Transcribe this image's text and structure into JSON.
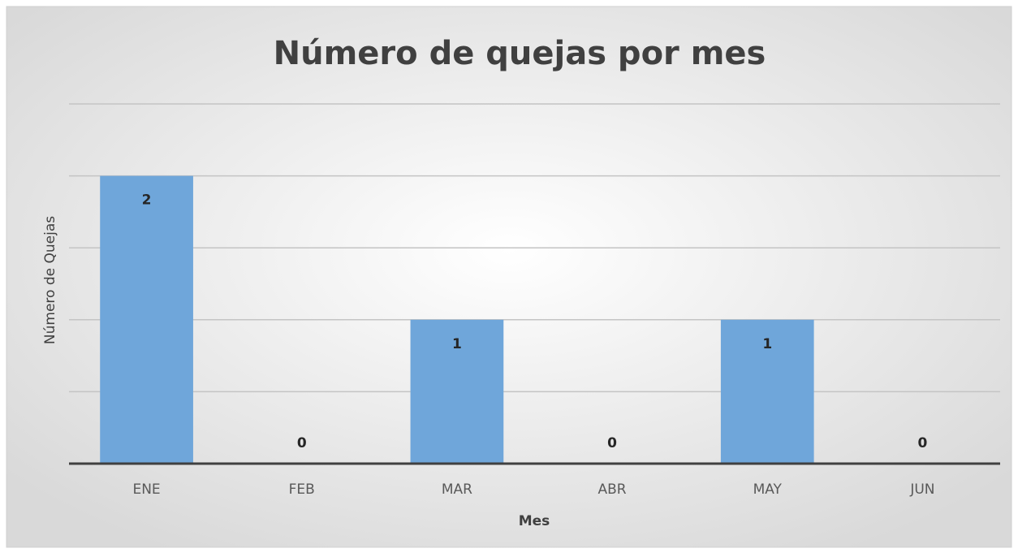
{
  "chart_data": {
    "type": "bar",
    "title": "Número de quejas por mes",
    "x_label": "Mes",
    "y_label": "Número de Quejas",
    "categories": [
      "ENE",
      "FEB",
      "MAR",
      "ABR",
      "MAY",
      "JUN"
    ],
    "values": [
      2,
      0,
      1,
      0,
      1,
      0
    ],
    "color": "#6fa6da",
    "ylim": [
      0,
      2.5
    ],
    "yticks": [
      0,
      0.5,
      1,
      1.5,
      2,
      2.5
    ],
    "grid": true
  }
}
